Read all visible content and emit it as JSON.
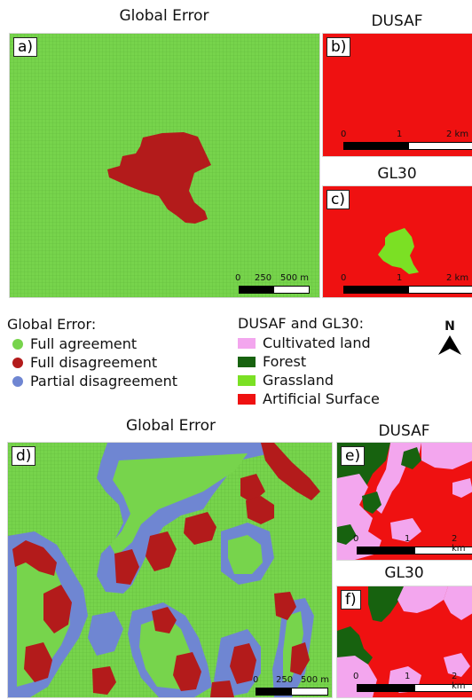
{
  "colors": {
    "full_agreement": "#77d44c",
    "full_disagreement": "#b31b1b",
    "partial_disagreement": "#6f86d2",
    "cultivated": "#f3a6ee",
    "forest": "#17620f",
    "grassland": "#7be024",
    "artificial": "#ef1111"
  },
  "top": {
    "global_title": "Global Error",
    "dusaf_title": "DUSAF",
    "gl30_title": "GL30",
    "panel_a": "a)",
    "panel_b": "b)",
    "panel_c": "c)",
    "scale_a": [
      "0",
      "250",
      "500 m"
    ],
    "scale_b": [
      "0",
      "1",
      "2 km"
    ],
    "scale_c": [
      "0",
      "1",
      "2 km"
    ]
  },
  "legend": {
    "global_title": "Global Error:",
    "global_items": [
      "Full agreement",
      "Full disagreement",
      "Partial disagreement"
    ],
    "lc_title": "DUSAF and GL30:",
    "lc_items": [
      "Cultivated land",
      "Forest",
      "Grassland",
      "Artificial Surface"
    ],
    "north_label": "N"
  },
  "bottom": {
    "global_title": "Global Error",
    "dusaf_title": "DUSAF",
    "gl30_title": "GL30",
    "panel_d": "d)",
    "panel_e": "e)",
    "panel_f": "f)",
    "scale_d": [
      "0",
      "250",
      "500 m"
    ],
    "scale_e": [
      "0",
      "1",
      "2 km"
    ],
    "scale_f": [
      "0",
      "1",
      "2 km"
    ]
  }
}
